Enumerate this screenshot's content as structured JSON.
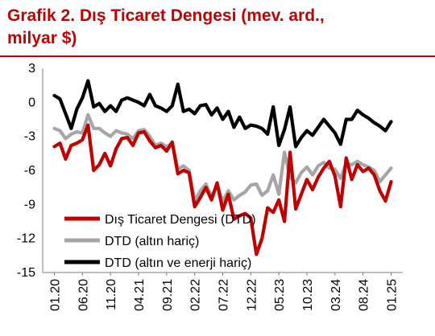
{
  "header": {
    "title_line1": "Grafik 2. Dış Ticaret Dengesi (mev. ard.,",
    "title_line2": "milyar $)"
  },
  "colors": {
    "series1": "#c00000",
    "series2": "#a6a6a6",
    "series3": "#000000",
    "title": "#c00000"
  },
  "chart_data": {
    "type": "line",
    "title": "Grafik 2. Dış Ticaret Dengesi (mev. ard., milyar $)",
    "xlabel": "",
    "ylabel": "",
    "ylim": [
      -15,
      3
    ],
    "yticks": [
      3,
      0,
      -3,
      -6,
      -9,
      -12,
      -15
    ],
    "xtick_labels": [
      "01.20",
      "06.20",
      "11.20",
      "04.21",
      "09.21",
      "02.22",
      "07.22",
      "12.22",
      "05.23",
      "10.23",
      "03.24",
      "08.24",
      "01.25"
    ],
    "grid": false,
    "legend_position": "bottom-left",
    "x": [
      "01.20",
      "02.20",
      "03.20",
      "04.20",
      "05.20",
      "06.20",
      "07.20",
      "08.20",
      "09.20",
      "10.20",
      "11.20",
      "12.20",
      "01.21",
      "02.21",
      "03.21",
      "04.21",
      "05.21",
      "06.21",
      "07.21",
      "08.21",
      "09.21",
      "10.21",
      "11.21",
      "12.21",
      "01.22",
      "02.22",
      "03.22",
      "04.22",
      "05.22",
      "06.22",
      "07.22",
      "08.22",
      "09.22",
      "10.22",
      "11.22",
      "12.22",
      "01.23",
      "02.23",
      "03.23",
      "04.23",
      "05.23",
      "06.23",
      "07.23",
      "08.23",
      "09.23",
      "10.23",
      "11.23",
      "12.23",
      "01.24",
      "02.24",
      "03.24",
      "04.24",
      "05.24",
      "06.24",
      "07.24",
      "08.24",
      "09.24",
      "10.24",
      "11.24",
      "12.24",
      "01.25"
    ],
    "series": [
      {
        "name": "Dış Ticaret Dengesi (DTD)",
        "values": [
          -3.9,
          -3.6,
          -5.0,
          -3.8,
          -3.6,
          -3.3,
          -2.0,
          -6.0,
          -5.5,
          -4.5,
          -5.6,
          -4.1,
          -3.2,
          -3.1,
          -3.8,
          -2.7,
          -2.6,
          -3.4,
          -4.0,
          -3.8,
          -4.3,
          -3.5,
          -6.3,
          -6.0,
          -6.2,
          -9.2,
          -8.4,
          -7.5,
          -8.6,
          -7.1,
          -9.5,
          -8.1,
          -10.3,
          -10.0,
          -9.8,
          -10.2,
          -13.4,
          -12.0,
          -9.3,
          -9.7,
          -8.6,
          -10.5,
          -4.4,
          -9.4,
          -8.1,
          -6.8,
          -7.7,
          -6.6,
          -5.8,
          -5.2,
          -6.5,
          -9.2,
          -4.9,
          -6.8,
          -5.5,
          -6.1,
          -5.8,
          -6.4,
          -7.8,
          -8.7,
          -7.0
        ]
      },
      {
        "name": "DTD (altın hariç)",
        "values": [
          -2.3,
          -2.5,
          -3.2,
          -2.8,
          -2.6,
          -2.7,
          -1.1,
          -2.3,
          -2.3,
          -2.7,
          -3.0,
          -2.5,
          -2.7,
          -2.8,
          -3.2,
          -2.5,
          -2.4,
          -3.0,
          -3.8,
          -3.6,
          -3.9,
          -3.6,
          -5.9,
          -5.6,
          -6.0,
          -8.7,
          -7.8,
          -7.2,
          -8.3,
          -7.3,
          -8.7,
          -7.8,
          -8.6,
          -8.2,
          -7.9,
          -7.3,
          -7.2,
          -8.2,
          -7.8,
          -6.4,
          -8.1,
          -4.4,
          -6.6,
          -7.1,
          -6.2,
          -5.7,
          -6.4,
          -5.6,
          -5.3,
          -5.8,
          -5.9,
          -6.7,
          -5.4,
          -5.5,
          -5.2,
          -5.5,
          -5.7,
          -6.0,
          -7.0,
          -6.4,
          -5.8
        ]
      },
      {
        "name": "DTD (altın ve enerji hariç)",
        "values": [
          0.6,
          0.3,
          -1.0,
          -2.3,
          -0.6,
          0.4,
          1.9,
          -0.4,
          -0.1,
          -0.8,
          -0.3,
          -0.8,
          0.2,
          0.4,
          0.2,
          0.0,
          -0.3,
          0.7,
          -0.3,
          -0.5,
          -0.8,
          -0.3,
          1.6,
          -0.8,
          -0.6,
          -1.0,
          -0.3,
          -0.2,
          -1.1,
          -0.5,
          -1.5,
          -0.8,
          -2.2,
          -1.3,
          -2.3,
          -2.0,
          -2.1,
          -2.3,
          -2.8,
          -0.4,
          -3.8,
          -2.4,
          -0.4,
          -3.9,
          -3.1,
          -2.5,
          -2.9,
          -2.2,
          -1.5,
          -2.1,
          -2.7,
          -3.7,
          -1.5,
          -1.5,
          -0.7,
          -1.1,
          -1.4,
          -1.8,
          -2.1,
          -2.5,
          -1.7
        ]
      }
    ]
  }
}
